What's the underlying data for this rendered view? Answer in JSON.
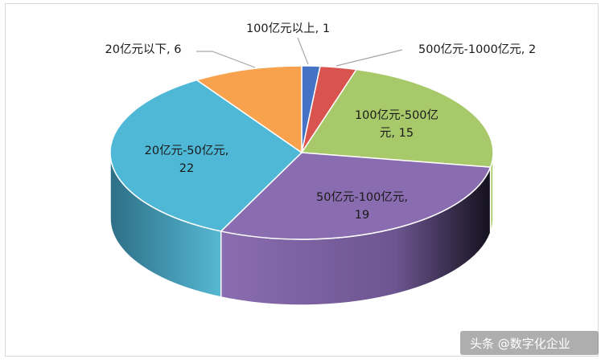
{
  "chart_data": {
    "type": "pie",
    "style": "3d",
    "slices": [
      {
        "name": "100亿元以上",
        "value": 1,
        "color": "#4472C4",
        "label_lines": [
          "100亿元以上, 1"
        ]
      },
      {
        "name": "500亿元-1000亿元",
        "value": 2,
        "color": "#D9534F",
        "label_lines": [
          "500亿元-1000亿元, 2"
        ]
      },
      {
        "name": "100亿元-500亿元",
        "value": 15,
        "color": "#A8C96A",
        "label_lines": [
          "100亿元-500亿",
          "元, 15"
        ]
      },
      {
        "name": "50亿元-100亿元",
        "value": 19,
        "color": "#8A6DB0",
        "label_lines": [
          "50亿元-100亿元,",
          "19"
        ]
      },
      {
        "name": "20亿元-50亿元",
        "value": 22,
        "color": "#4FB8D6",
        "label_lines": [
          "20亿元-50亿元,",
          "22"
        ]
      },
      {
        "name": "20亿元以下",
        "value": 6,
        "color": "#F9A24E",
        "label_lines": [
          "20亿元以下, 6"
        ]
      }
    ]
  },
  "watermark": "头条 @数字化企业"
}
